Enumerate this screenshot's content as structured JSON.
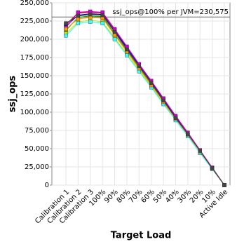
{
  "chart_data": {
    "type": "line",
    "x_label": "Target Load",
    "y_label": "ssj_ops",
    "categories": [
      "Calibration 1",
      "Calibration 2",
      "Calibration 3",
      "100%",
      "90%",
      "80%",
      "70%",
      "60%",
      "50%",
      "40%",
      "30%",
      "20%",
      "10%",
      "Active Idle"
    ],
    "series": [
      {
        "color": "#dd0000",
        "values": [
          220000,
          236000,
          237000,
          236000,
          213000,
          189000,
          165000,
          142000,
          118000,
          94000,
          71000,
          47000,
          24000,
          0
        ]
      },
      {
        "color": "#0000dd",
        "values": [
          218000,
          233000,
          235000,
          234000,
          211000,
          188000,
          164000,
          141000,
          117000,
          93000,
          70000,
          46000,
          23500,
          0
        ]
      },
      {
        "color": "#00aa00",
        "values": [
          212000,
          230000,
          232000,
          231000,
          207000,
          184000,
          161000,
          138000,
          115000,
          92000,
          69000,
          46000,
          23000,
          0
        ]
      },
      {
        "color": "#cc00cc",
        "values": [
          216000,
          237000,
          238000,
          237000,
          214000,
          190000,
          166000,
          143000,
          119000,
          95000,
          72000,
          48000,
          24000,
          0
        ]
      },
      {
        "color": "#dddd00",
        "values": [
          208000,
          224000,
          226000,
          224000,
          202000,
          180000,
          158000,
          135000,
          112000,
          90000,
          68000,
          45000,
          22500,
          0
        ]
      },
      {
        "color": "#33ffff",
        "values": [
          205000,
          222000,
          224000,
          222000,
          200000,
          178000,
          156000,
          134000,
          111000,
          89000,
          67000,
          44000,
          22000,
          0
        ]
      },
      {
        "color": "#ff9900",
        "values": [
          214000,
          228000,
          230000,
          229000,
          206000,
          183000,
          160000,
          137000,
          114000,
          91000,
          69000,
          46000,
          23000,
          0
        ]
      },
      {
        "color": "#444444",
        "values": [
          222000,
          232000,
          234000,
          233000,
          210000,
          186000,
          163000,
          140000,
          116000,
          92000,
          70000,
          47000,
          23000,
          0
        ]
      }
    ],
    "ylim": [
      0,
      250000
    ],
    "yticks": [
      0,
      {
        "value": 25000,
        "label": "25,000"
      },
      {
        "value": 50000,
        "label": "50,000"
      },
      {
        "value": 75000,
        "label": "75,000"
      },
      {
        "value": 100000,
        "label": "100,000"
      },
      {
        "value": 125000,
        "label": "125,000"
      },
      {
        "value": 150000,
        "label": "150,000"
      },
      {
        "value": 175000,
        "label": "175,000"
      },
      {
        "value": 200000,
        "label": "200,000"
      },
      {
        "value": 225000,
        "label": "225,000"
      },
      {
        "value": 250000,
        "label": "250,000"
      }
    ],
    "reference_line": {
      "value": 230575,
      "label": "ssj_ops@100% per JVM=230,575"
    },
    "grid": true
  }
}
